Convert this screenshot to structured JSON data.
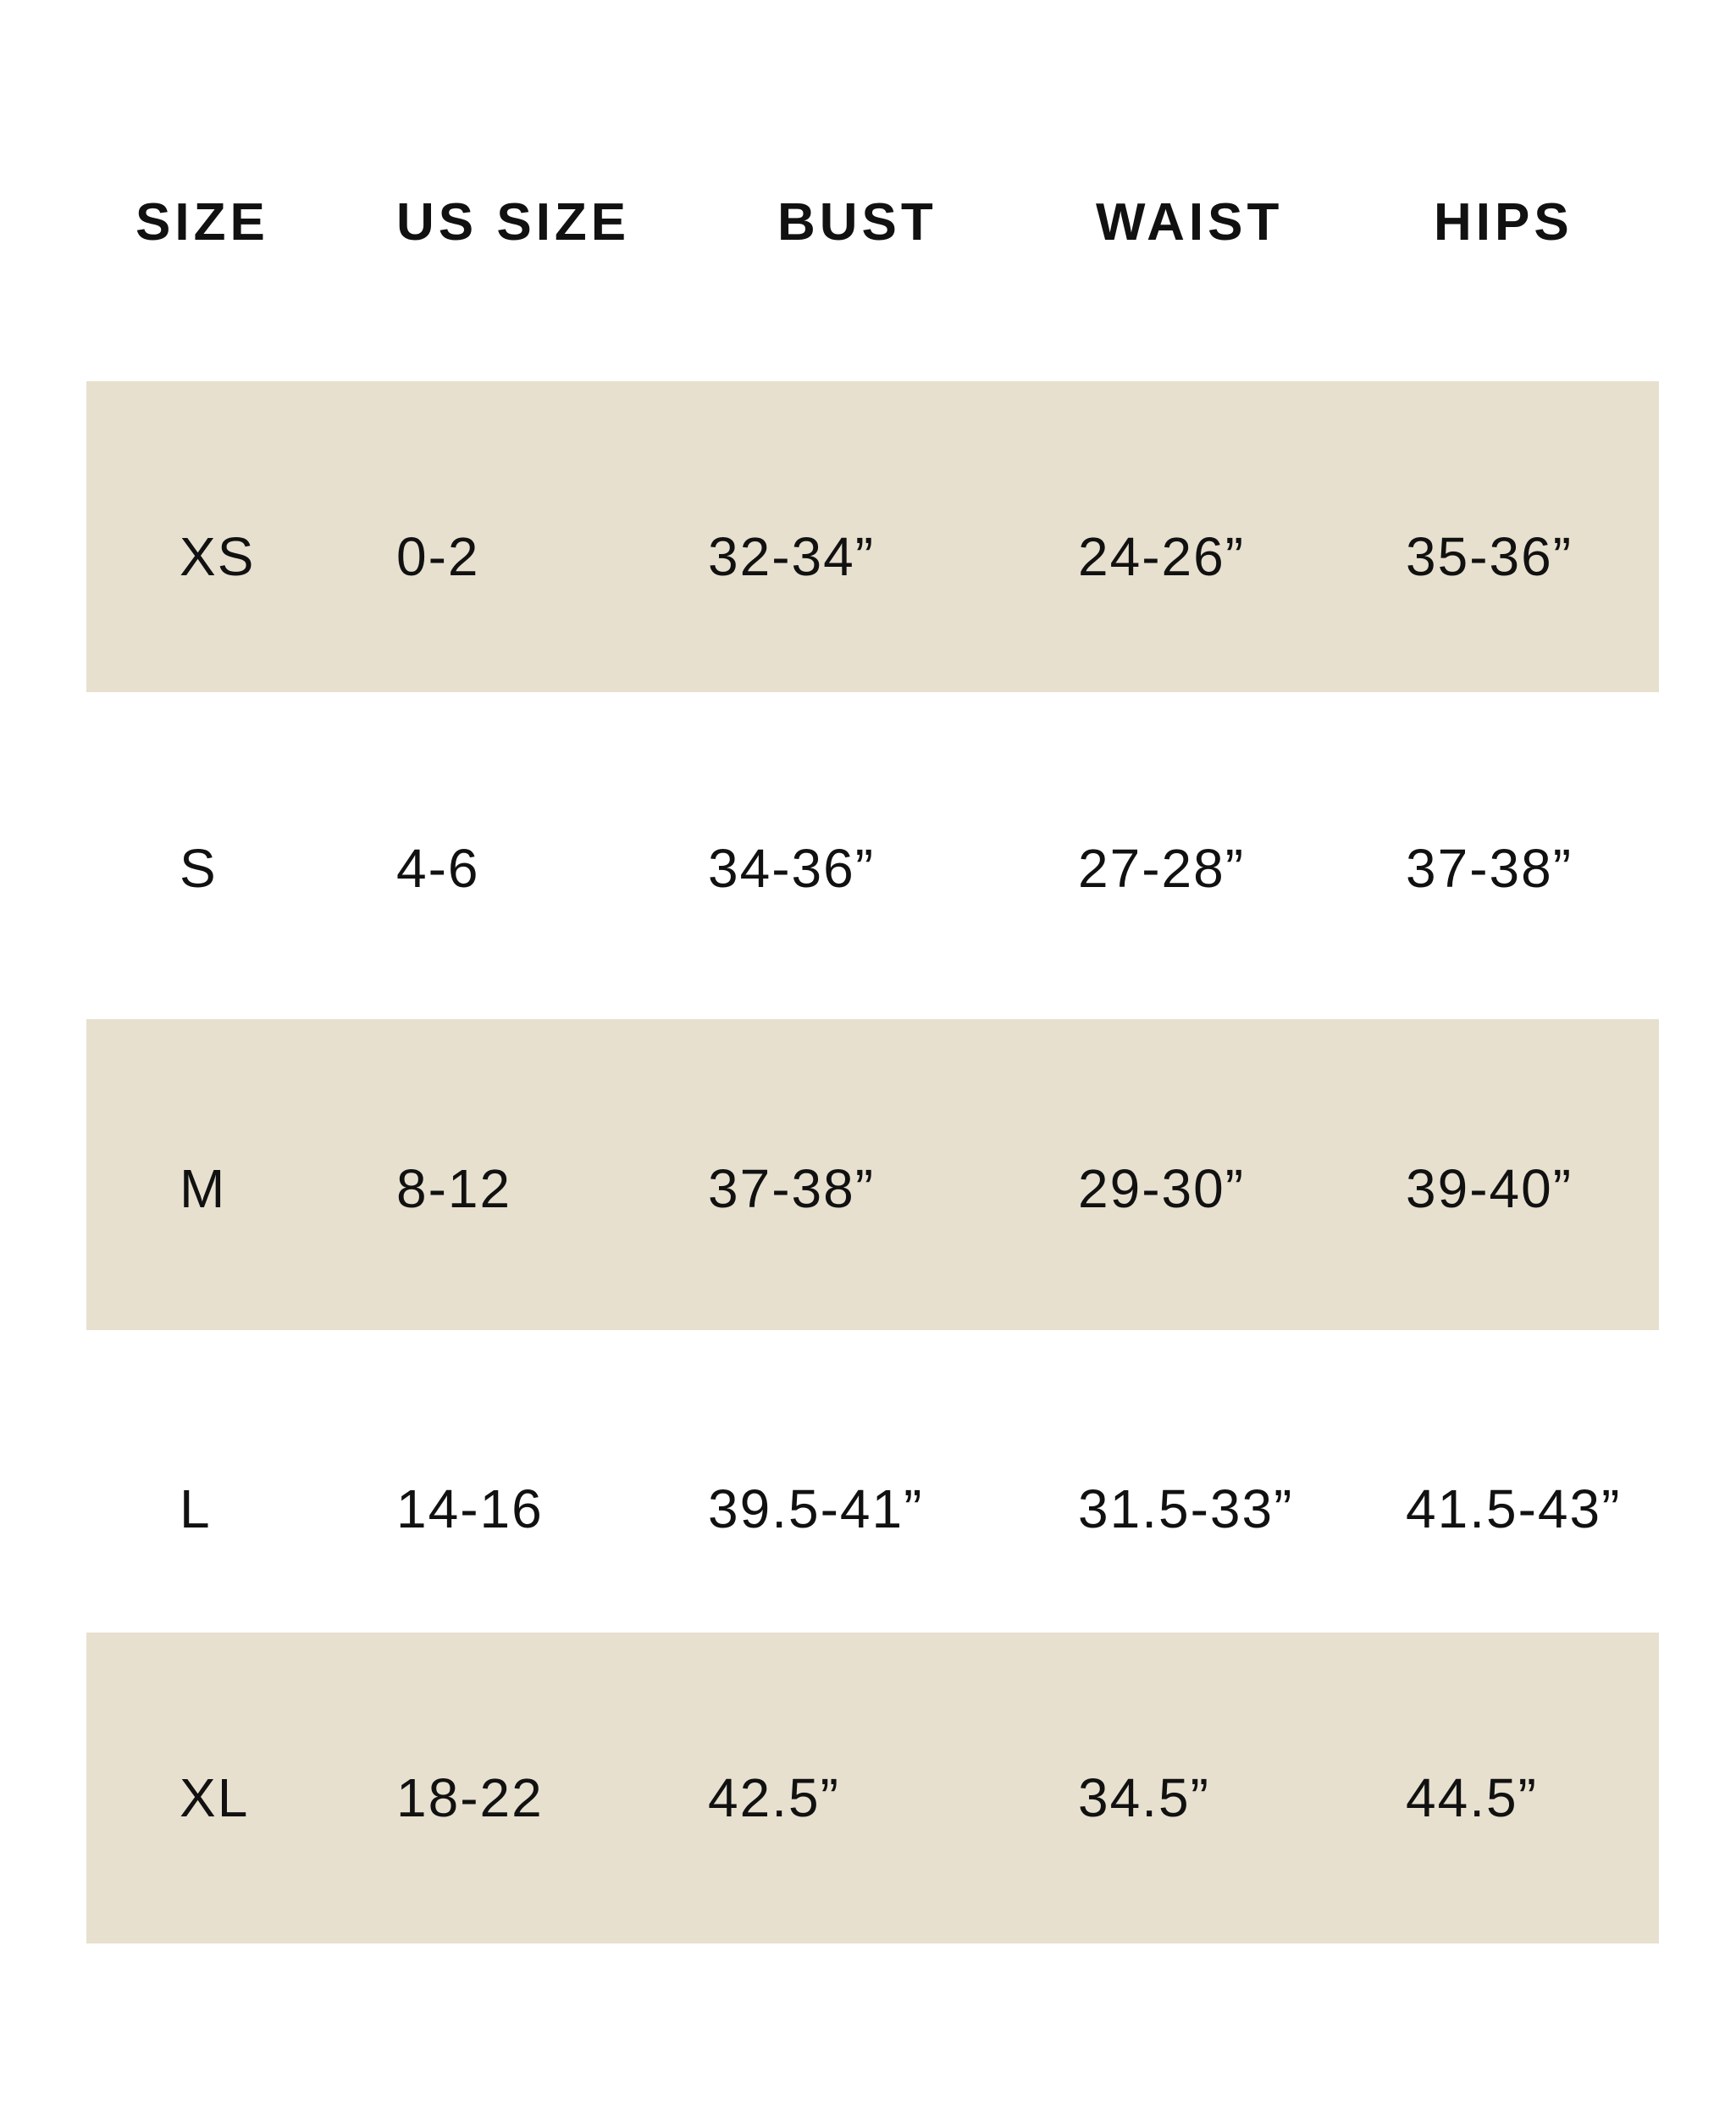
{
  "table": {
    "headers": [
      "SIZE",
      "US SIZE",
      "BUST",
      "WAIST",
      "HIPS"
    ],
    "rows": [
      [
        "XS",
        "0-2",
        "32-34”",
        "24-26”",
        "35-36”"
      ],
      [
        "S",
        "4-6",
        "34-36”",
        "27-28”",
        "37-38”"
      ],
      [
        "M",
        "8-12",
        "37-38”",
        "29-30”",
        "39-40”"
      ],
      [
        "L",
        "14-16",
        "39.5-41”",
        "31.5-33”",
        "41.5-43”"
      ],
      [
        "XL",
        "18-22",
        "42.5”",
        "34.5”",
        "44.5”"
      ]
    ]
  },
  "colors": {
    "band": "#e7e0cf",
    "text": "#111111"
  }
}
